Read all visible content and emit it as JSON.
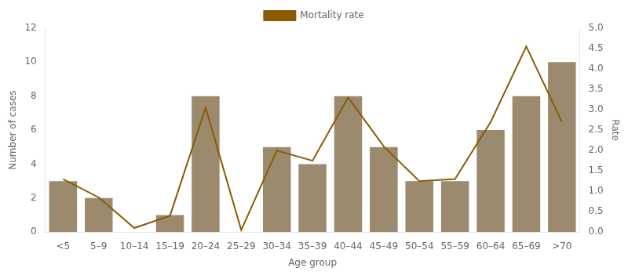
{
  "chart_data": {
    "type": "bar",
    "xlabel": "Age group",
    "ylabel": "Number of cases",
    "y2label": "Rate",
    "categories": [
      "<5",
      "5–9",
      "10–14",
      "15–19",
      "20–24",
      "25–29",
      "30–34",
      "35–39",
      "40–44",
      "45–49",
      "50–54",
      "55–59",
      "60–64",
      "65–69",
      ">70"
    ],
    "series": [
      {
        "type": "bar",
        "color": "#9B8A6E",
        "values": [
          3,
          2,
          0,
          1,
          8,
          0,
          5,
          4,
          8,
          5,
          3,
          3,
          6,
          8,
          10
        ]
      },
      {
        "type": "line",
        "name": "Mortality rate",
        "color": "#8B5A00",
        "axis": "y2",
        "values": [
          1.3,
          0.85,
          0.1,
          0.4,
          3.05,
          0.05,
          2.0,
          1.75,
          3.3,
          2.1,
          1.25,
          1.3,
          2.7,
          4.55,
          2.7
        ]
      }
    ],
    "ylim": [
      0,
      12
    ],
    "yticks": [
      0,
      2,
      4,
      6,
      8,
      10,
      12
    ],
    "y2lim": [
      0,
      5.0
    ],
    "y2ticks": [
      {
        "value": 0,
        "label": "0.0"
      },
      0.5,
      {
        "value": 1,
        "label": "1.0"
      },
      1.5,
      {
        "value": 2,
        "label": "2.0"
      },
      2.5,
      {
        "value": 3,
        "label": "3.0"
      },
      3.5,
      {
        "value": 4,
        "label": "4.0"
      },
      4.5,
      {
        "value": 5,
        "label": "5.0"
      }
    ],
    "grid": false,
    "legend": "top"
  }
}
